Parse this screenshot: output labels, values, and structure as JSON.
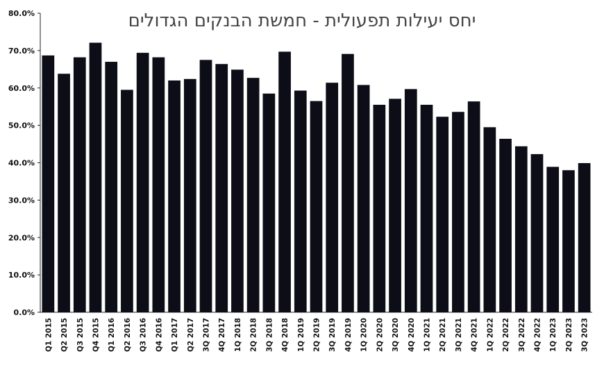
{
  "chart_data": {
    "type": "bar",
    "title": "יחס יעילות תפעולית - חמשת הבנקים הגדולים",
    "xlabel": "",
    "ylabel": "",
    "ylim": [
      0,
      80
    ],
    "y_ticks": [
      "0.0%",
      "10.0%",
      "20.0%",
      "30.0%",
      "40.0%",
      "50.0%",
      "60.0%",
      "70.0%",
      "80.0%"
    ],
    "y_tick_values": [
      0,
      10,
      20,
      30,
      40,
      50,
      60,
      70,
      80
    ],
    "grid": false,
    "bar_color": "#0d0d17",
    "categories": [
      "Q1 2015",
      "Q2 2015",
      "Q3 2015",
      "Q4 2015",
      "Q1 2016",
      "Q2 2016",
      "Q3 2016",
      "Q4 2016",
      "Q1 2017",
      "Q2 2017",
      "3Q 2017",
      "4Q 2017",
      "1Q 2018",
      "2Q 2018",
      "3Q 2018",
      "4Q 2018",
      "1Q 2019",
      "2Q 2019",
      "3Q 2019",
      "4Q 2019",
      "1Q 2020",
      "2Q 2020",
      "3Q 2020",
      "4Q 2020",
      "1Q 2021",
      "2Q 2021",
      "3Q 2021",
      "4Q 2021",
      "1Q 2022",
      "2Q 2022",
      "3Q 2022",
      "4Q 2022",
      "1Q 2023",
      "2Q 2023",
      "3Q 2023"
    ],
    "values": [
      68.7,
      63.8,
      68.2,
      72.1,
      67.0,
      59.5,
      69.4,
      68.2,
      62.0,
      62.4,
      67.5,
      66.4,
      64.9,
      62.7,
      58.5,
      69.7,
      59.3,
      56.5,
      61.4,
      69.1,
      60.8,
      55.5,
      57.1,
      59.7,
      55.5,
      52.3,
      53.6,
      56.4,
      49.5,
      46.4,
      44.4,
      42.3,
      38.9,
      38.0,
      39.9
    ]
  }
}
